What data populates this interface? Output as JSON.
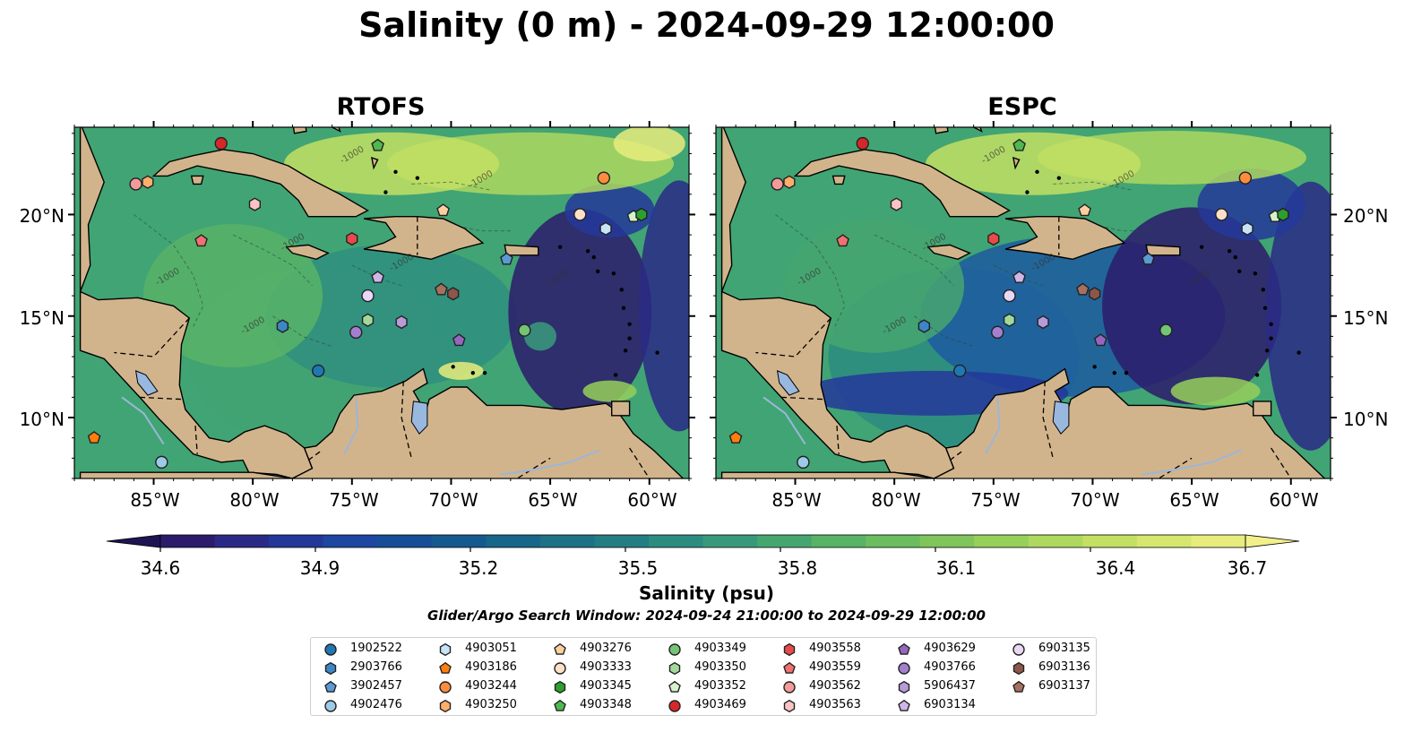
{
  "title": "Salinity (0 m) - 2024-09-29 12:00:00",
  "panels": [
    {
      "title": "RTOFS"
    },
    {
      "title": "ESPC"
    }
  ],
  "lat_labels": [
    "20°N",
    "15°N",
    "10°N"
  ],
  "lon_labels": [
    "85°W",
    "80°W",
    "75°W",
    "70°W",
    "65°W",
    "60°W"
  ],
  "contour_label": "-1000",
  "colorbar": {
    "label": "Salinity (psu)",
    "ticks": [
      "34.6",
      "34.9",
      "35.2",
      "35.5",
      "35.8",
      "36.1",
      "36.4",
      "36.7"
    ],
    "range": [
      34.6,
      36.7
    ],
    "colors": [
      "#2c1b6b",
      "#2a2a86",
      "#24389a",
      "#1d47a0",
      "#174f96",
      "#155a8f",
      "#186689",
      "#1d7286",
      "#237e84",
      "#2c8c80",
      "#37997a",
      "#46a670",
      "#58b367",
      "#6bbd60",
      "#80c55b",
      "#97cf5b",
      "#aed85f",
      "#c3e063",
      "#d6e66e",
      "#e8ec7c"
    ],
    "extend": "both"
  },
  "search_window": "Glider/Argo Search Window: 2024-09-24 21:00:00 to 2024-09-29 12:00:00",
  "legend": [
    {
      "id": "1902522",
      "shape": "circle",
      "color": "#1f77b4"
    },
    {
      "id": "2903766",
      "shape": "hexagon",
      "color": "#3d86c6"
    },
    {
      "id": "3902457",
      "shape": "pentagon",
      "color": "#5a9bd5"
    },
    {
      "id": "4902476",
      "shape": "circle",
      "color": "#9ecae9"
    },
    {
      "id": "4903051",
      "shape": "hexagon",
      "color": "#c6e3f7"
    },
    {
      "id": "4903186",
      "shape": "pentagon",
      "color": "#ff7f0e"
    },
    {
      "id": "4903244",
      "shape": "circle",
      "color": "#fd8d3c"
    },
    {
      "id": "4903250",
      "shape": "hexagon",
      "color": "#fdae6b"
    },
    {
      "id": "4903276",
      "shape": "pentagon",
      "color": "#fdcf9e"
    },
    {
      "id": "4903333",
      "shape": "circle",
      "color": "#fde0c5"
    },
    {
      "id": "4903345",
      "shape": "hexagon",
      "color": "#2ca02c"
    },
    {
      "id": "4903348",
      "shape": "pentagon",
      "color": "#4fb84f"
    },
    {
      "id": "4903349",
      "shape": "circle",
      "color": "#74c476"
    },
    {
      "id": "4903350",
      "shape": "hexagon",
      "color": "#a1d99b"
    },
    {
      "id": "4903352",
      "shape": "pentagon",
      "color": "#d4f2cc"
    },
    {
      "id": "4903469",
      "shape": "circle",
      "color": "#d62728"
    },
    {
      "id": "4903558",
      "shape": "hexagon",
      "color": "#e84a4a"
    },
    {
      "id": "4903559",
      "shape": "pentagon",
      "color": "#f07171"
    },
    {
      "id": "4903562",
      "shape": "circle",
      "color": "#f59a9a"
    },
    {
      "id": "4903563",
      "shape": "hexagon",
      "color": "#fcc3c3"
    },
    {
      "id": "4903629",
      "shape": "pentagon",
      "color": "#9467bd"
    },
    {
      "id": "4903766",
      "shape": "circle",
      "color": "#a57fcf"
    },
    {
      "id": "5906437",
      "shape": "hexagon",
      "color": "#b99ad9"
    },
    {
      "id": "6903134",
      "shape": "pentagon",
      "color": "#d0b6e8"
    },
    {
      "id": "6903135",
      "shape": "circle",
      "color": "#ead6f5"
    },
    {
      "id": "6903136",
      "shape": "hexagon",
      "color": "#8c564b"
    },
    {
      "id": "6903137",
      "shape": "pentagon",
      "color": "#a6705f"
    }
  ],
  "floats": [
    {
      "id": "4903469",
      "lon": -81.6,
      "lat": 23.5
    },
    {
      "id": "4903562",
      "lon": -85.9,
      "lat": 21.5
    },
    {
      "id": "4903250",
      "lon": -85.3,
      "lat": 21.6
    },
    {
      "id": "4903563",
      "lon": -79.9,
      "lat": 20.5
    },
    {
      "id": "4903559",
      "lon": -82.6,
      "lat": 18.7
    },
    {
      "id": "4903558",
      "lon": -75.0,
      "lat": 18.8
    },
    {
      "id": "4903348",
      "lon": -73.7,
      "lat": 23.4
    },
    {
      "id": "4903276",
      "lon": -70.4,
      "lat": 20.2
    },
    {
      "id": "4903244",
      "lon": -62.3,
      "lat": 21.8
    },
    {
      "id": "4903333",
      "lon": -63.5,
      "lat": 20.0
    },
    {
      "id": "4903051",
      "lon": -62.2,
      "lat": 19.3
    },
    {
      "id": "4903352",
      "lon": -60.8,
      "lat": 19.9
    },
    {
      "id": "4903345",
      "lon": -60.4,
      "lat": 20.0
    },
    {
      "id": "3902457",
      "lon": -67.2,
      "lat": 17.8
    },
    {
      "id": "6903134",
      "lon": -73.7,
      "lat": 16.9
    },
    {
      "id": "6903135",
      "lon": -74.2,
      "lat": 16.0
    },
    {
      "id": "6903136",
      "lon": -69.9,
      "lat": 16.1
    },
    {
      "id": "6903137",
      "lon": -70.5,
      "lat": 16.3
    },
    {
      "id": "2903766",
      "lon": -78.5,
      "lat": 14.5
    },
    {
      "id": "4903350",
      "lon": -74.2,
      "lat": 14.8
    },
    {
      "id": "5906437",
      "lon": -72.5,
      "lat": 14.7
    },
    {
      "id": "4903766",
      "lon": -74.8,
      "lat": 14.2
    },
    {
      "id": "4903629",
      "lon": -69.6,
      "lat": 13.8
    },
    {
      "id": "4903349",
      "lon": -66.3,
      "lat": 14.3
    },
    {
      "id": "1902522",
      "lon": -76.7,
      "lat": 12.3
    },
    {
      "id": "4903186",
      "lon": -88.0,
      "lat": 9.0
    },
    {
      "id": "4902476",
      "lon": -84.6,
      "lat": 7.8
    }
  ]
}
